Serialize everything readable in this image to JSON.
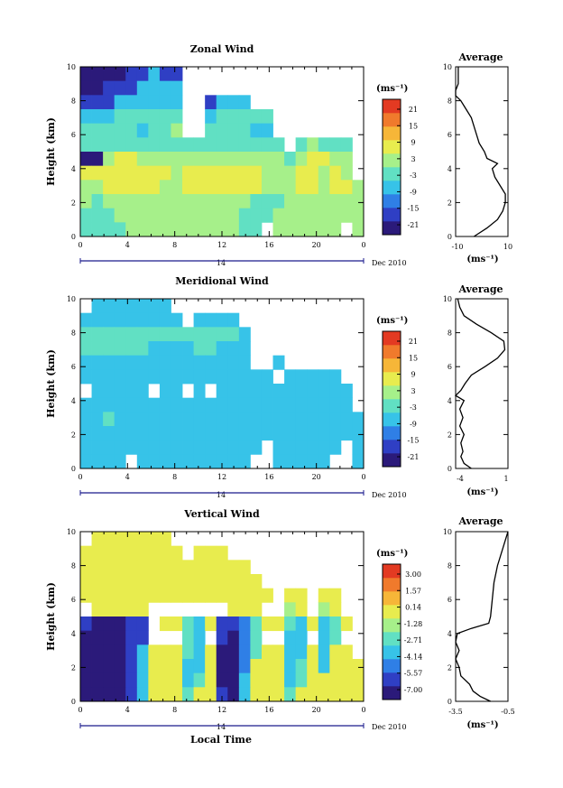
{
  "colors": {
    "scale": [
      "#2b1a7a",
      "#2f3fc4",
      "#2f7fe6",
      "#37c3e8",
      "#61e0c3",
      "#a6f08a",
      "#e8ec4e",
      "#f6b638",
      "#f07a2c",
      "#e33a22"
    ],
    "axis": "#000000",
    "time_marker": "#1a1a8c"
  },
  "chart_data": [
    {
      "type": "heatmap",
      "title": "Zonal Wind",
      "ylabel": "Height (km)",
      "xlabel": "",
      "xlim": [
        0,
        24
      ],
      "ylim": [
        0,
        10
      ],
      "xticks": [
        "0",
        "4",
        "8",
        "12",
        "16",
        "20",
        "0"
      ],
      "yticks": [
        "0",
        "2",
        "4",
        "6",
        "8",
        "10"
      ],
      "date_center": "14",
      "date_label": "Dec 2010",
      "colorbar": {
        "unit": "(ms⁻¹)",
        "ticks": [
          "21",
          "15",
          "9",
          "3",
          "-3",
          "-9",
          "-15",
          "-21"
        ],
        "range": [
          -24,
          24
        ]
      },
      "field": {
        "rows": [
          "-21 -21 -21 -21 -15 -15 -9 -15 -15 x x x x x x x x x x x x x x x x",
          "-21 -21 -15 -15 -15 -9 -9 -9 -9 x x x x x x x x x x x x x x x x",
          "-15 -15 -15 -9 -9 -9 -9 -9 -9 x x -15 -9 -9 -9 x x x x x x x x x x",
          "-9 -9 -9 -3 -3 -3 -3 -3 -3 x x -9 -3 -3 -3 -3 -3 x x x x x x x x",
          "-3 -3 -3 -3 -3 -9 -3 -3 3 x x -3 -3 -3 -3 -9 -9 x x x x x x x x",
          "-3 -3 -3 -3 -3 -3 -3 -3 -3 -3 -3 -3 -3 -3 -3 -3 -3 -3 x -3 3 -3 -3 -3 x",
          "-21 -21 3 9 9 3 3 3 3 3 3 3 3 3 3 3 3 3 -3 3 9 9 3 3 x",
          "9 9 9 9 9 9 9 9 3 9 9 9 9 9 9 9 3 3 3 9 9 3 9 3 x",
          "3 3 9 9 9 9 9 3 3 9 9 9 9 9 9 9 3 3 3 9 9 3 9 9 3",
          "3 -3 3 3 3 3 3 3 3 3 3 3 3 3 3 -3 -3 -3 3 3 3 3 3 3 3",
          "-3 -3 -3 3 3 3 3 3 3 3 3 3 3 3 -3 -3 -3 3 3 3 3 3 3 3 3",
          "-3 -3 -3 -3 3 3 3 3 3 3 3 3 3 3 -3 -3 x 3 3 3 3 3 3 x 3"
        ]
      },
      "profile": {
        "title": "Average",
        "xlim": [
          -10,
          10
        ],
        "xticks": [
          "-10",
          "10"
        ],
        "unit": "(ms⁻¹)",
        "heights": [
          0,
          0.5,
          1,
          1.5,
          2,
          2.5,
          3,
          3.5,
          4,
          4.3,
          4.6,
          5,
          5.5,
          6,
          6.5,
          7,
          7.5,
          8,
          8.3,
          8.6,
          9,
          9.5,
          10
        ],
        "values": [
          -3,
          2,
          6,
          8,
          9,
          9,
          7,
          5,
          4,
          6,
          2,
          1,
          -1,
          -2,
          -3,
          -4,
          -6,
          -8,
          -10,
          -10,
          -9,
          -9,
          -9
        ]
      }
    },
    {
      "type": "heatmap",
      "title": "Meridional Wind",
      "ylabel": "Height (km)",
      "xlabel": "",
      "xlim": [
        0,
        24
      ],
      "ylim": [
        0,
        10
      ],
      "xticks": [
        "0",
        "4",
        "8",
        "12",
        "16",
        "20",
        "0"
      ],
      "yticks": [
        "0",
        "2",
        "4",
        "6",
        "8",
        "10"
      ],
      "date_center": "14",
      "date_label": "Dec 2010",
      "colorbar": {
        "unit": "(ms⁻¹)",
        "ticks": [
          "21",
          "15",
          "9",
          "3",
          "-3",
          "-9",
          "-15",
          "-21"
        ],
        "range": [
          -24,
          24
        ]
      },
      "field": {
        "rows": [
          "x -9 -9 -9 -9 -9 -9 -9 x x x x x x x x x x x x x x x x x",
          "-9 -9 -9 -9 -9 -9 -9 -9 -9 x -9 -9 -9 -9 x x x x x x x x x x x",
          "-3 -3 -3 -3 -3 -3 -3 -3 -3 -3 -3 -3 -3 -3 -9 x x x x x x x x x x",
          "-3 -3 -3 -3 -3 -3 -9 -9 -9 -9 -3 -3 -9 -9 -9 x x x x x x x x x x",
          "-9 -9 -9 -9 -9 -9 -9 -9 -9 -9 -9 -9 -9 -9 -9 x x -9 x x x x x x x",
          "-9 -9 -9 -9 -9 -9 -9 -9 -9 -9 -9 -9 -9 -9 -9 -9 -9 x -9 -9 -9 -9 -9 x x",
          "x -9 -9 -9 -9 -9 x -9 -9 x -9 x -9 -9 -9 -9 -9 -9 -9 -9 -9 -9 -9 -9 x",
          "-9 -9 -9 -9 -9 -9 -9 -9 -9 -9 -9 -9 -9 -9 -9 -9 -9 -9 -9 -9 -9 -9 -9 -9 x",
          "-9 -9 -3 -9 -9 -9 -9 -9 -9 -9 -9 -9 -9 -9 -9 -9 -9 -9 -9 -9 -9 -9 -9 -9 -9",
          "-9 -9 -9 -9 -9 -9 -9 -9 -9 -9 -9 -9 -9 -9 -9 -9 -9 -9 -9 -9 -9 -9 -9 -9 -9",
          "-9 -9 -9 -9 -9 -9 -9 -9 -9 -9 -9 -9 -9 -9 -9 -9 x -9 -9 -9 -9 -9 -9 x -9",
          "-9 -9 -9 -9 x -9 -9 -9 -9 -9 -9 -9 -9 -9 -9 x x -9 -9 -9 -9 -9 x x -9"
        ]
      },
      "profile": {
        "title": "Average",
        "xlim": [
          -4,
          1
        ],
        "xticks": [
          "-4",
          "1"
        ],
        "unit": "(ms⁻¹)",
        "heights": [
          0,
          0.3,
          0.7,
          1,
          1.5,
          2,
          2.5,
          3,
          3.5,
          4,
          4.3,
          4.6,
          5,
          5.5,
          6,
          6.5,
          7,
          7.5,
          8,
          8.5,
          9,
          9.5,
          10
        ],
        "values": [
          -2.5,
          -3.2,
          -3.5,
          -3.3,
          -3.5,
          -3.2,
          -3.6,
          -3.3,
          -3.6,
          -3.2,
          -4,
          -3.5,
          -3.1,
          -2.5,
          -1.2,
          0,
          0.7,
          0.6,
          -0.6,
          -2,
          -3.2,
          -3.6,
          -3.8
        ]
      }
    },
    {
      "type": "heatmap",
      "title": "Vertical Wind",
      "ylabel": "Height (km)",
      "xlabel": "Local Time",
      "xlim": [
        0,
        24
      ],
      "ylim": [
        0,
        10
      ],
      "xticks": [
        "0",
        "4",
        "8",
        "12",
        "16",
        "20",
        "0"
      ],
      "yticks": [
        "0",
        "2",
        "4",
        "6",
        "8",
        "10"
      ],
      "date_center": "14",
      "date_label": "Dec 2010",
      "colorbar": {
        "unit": "(ms⁻¹)",
        "ticks": [
          "3.00",
          "1.57",
          "0.14",
          "-1.28",
          "-2.71",
          "-4.14",
          "-5.57",
          "-7.00"
        ],
        "range": [
          -7.7,
          3.7
        ]
      },
      "field": {
        "rows": [
          "x -0.5 -0.5 -0.5 -0.5 -0.5 -0.5 -0.5 x x x x x x x x x x x x x x x x x",
          "-0.5 -0.5 -0.5 -0.5 -0.5 -0.5 -0.5 -0.5 -0.5 x -0.5 -0.5 -0.5 x x x x x x x x x x x x",
          "-0.5 -0.5 -0.5 -0.5 -0.5 -0.5 -0.5 -0.5 -0.5 -0.5 -0.5 -0.5 -0.5 -0.5 -0.5 x x x x x x x x x x",
          "-0.5 -0.5 -0.5 -0.5 -0.5 -0.5 -0.5 -0.5 -0.5 -0.5 -0.5 -0.5 -0.5 -0.5 -0.5 -0.5 x x x x x x x x x",
          "-0.5 -0.5 -0.5 -0.5 -0.5 -0.5 -0.5 -0.5 -0.5 -0.5 -0.5 -0.5 -0.5 -0.5 -0.5 -0.5 -0.5 x -0.5 -0.5 x -0.5 -0.5 x x",
          "x -0.5 -0.5 -0.5 -0.5 -0.5 x x x x x x x -0.5 -0.5 -0.5 x x -1.28 -0.5 x -1.28 -0.5 x x",
          "-6 -7 -7 -7 -6 -6 x 0.1 0.1 -2.7 -4.1 0.1 -6 -6 -5 -2.7 0.1 0.1 -2.7 -4.1 0.1 -4.1 -2.7 0.1 x",
          "-7 -7 -7 -7 -6 -6 x x x -2.7 -4.1 x -6 -7 -5 -2.7 x x -4.1 -4.1 x -4.1 -2.7 x x",
          "-7 -7 -7 -7 -6 -4.1 0.1 0.1 0.1 -2.7 -4.1 0.1 -7 -7 -5 -2.7 0.1 0.1 -4.1 -4.1 0.1 -4.1 0.1 0.1 x",
          "-7 -7 -7 -7 -6 -4.1 0.1 0.1 0.1 -4.1 -4.1 0.1 -7 -7 -5 0.1 0.1 0.1 -4.1 -2.7 0.1 -4.1 0.1 0.1 0.1",
          "-7 -7 -7 -7 -6 -4.1 0.1 0.1 0.1 -4.1 -2.7 0.1 -7 -7 -4.1 0.1 0.1 0.1 -4.1 -2.7 0.1 0.1 0.1 0.1 0.1",
          "-7 -7 -7 -7 -6 -4.1 0.1 0.1 0.1 -2.7 0.1 0.1 -6 -7 -4.1 0.1 0.1 0.1 -2.7 0.1 0.1 0.1 0.1 0.1 0.1"
        ]
      },
      "profile": {
        "title": "Average",
        "xlim": [
          -3.5,
          -0.5
        ],
        "xticks": [
          "-3.5",
          "-0.5"
        ],
        "unit": "(ms⁻¹)",
        "heights": [
          0,
          0.3,
          0.6,
          1,
          1.5,
          2,
          2.5,
          3,
          3.5,
          4,
          4.3,
          4.6,
          5,
          6,
          7,
          8,
          9,
          10
        ],
        "values": [
          -1.5,
          -2.1,
          -2.5,
          -2.7,
          -3.2,
          -3.3,
          -3.5,
          -3.3,
          -3.5,
          -3.4,
          -2.6,
          -1.6,
          -1.5,
          -1.4,
          -1.3,
          -1.1,
          -0.8,
          -0.5
        ]
      }
    }
  ]
}
